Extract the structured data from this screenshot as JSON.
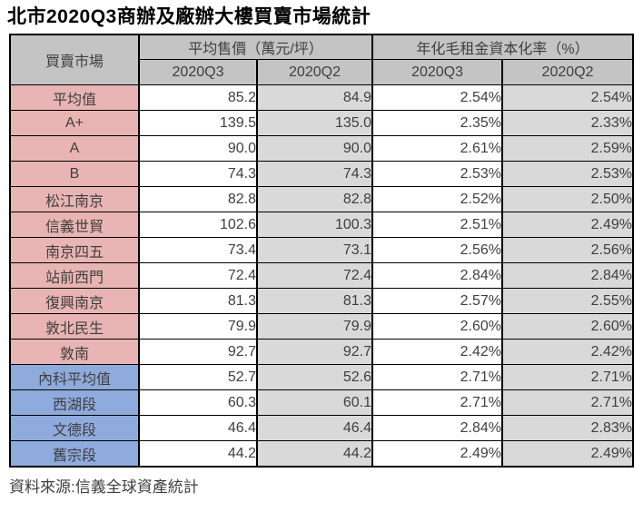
{
  "title": "北市2020Q3商辦及廠辦大樓買賣市場統計",
  "source_note": "資料來源:信義全球資產統計",
  "table": {
    "corner_header": "買賣市場",
    "group_headers": [
      "平均售價（萬元/坪）",
      "年化毛租金資本化率（%）"
    ],
    "sub_headers": [
      "2020Q3",
      "2020Q2",
      "2020Q3",
      "2020Q2"
    ],
    "column_names": [
      "price-2020q3",
      "price-2020q2",
      "caprate-2020q3",
      "caprate-2020q2"
    ],
    "rows": [
      {
        "label": "平均值",
        "section": "city",
        "values": [
          "85.2",
          "84.9",
          "2.54%",
          "2.54%"
        ]
      },
      {
        "label": "A+",
        "section": "city",
        "values": [
          "139.5",
          "135.0",
          "2.35%",
          "2.33%"
        ]
      },
      {
        "label": "A",
        "section": "city",
        "values": [
          "90.0",
          "90.0",
          "2.61%",
          "2.59%"
        ]
      },
      {
        "label": "B",
        "section": "city",
        "values": [
          "74.3",
          "74.3",
          "2.53%",
          "2.53%"
        ]
      },
      {
        "label": "松江南京",
        "section": "city",
        "values": [
          "82.8",
          "82.8",
          "2.52%",
          "2.50%"
        ]
      },
      {
        "label": "信義世貿",
        "section": "city",
        "values": [
          "102.6",
          "100.3",
          "2.51%",
          "2.49%"
        ]
      },
      {
        "label": "南京四五",
        "section": "city",
        "values": [
          "73.4",
          "73.1",
          "2.56%",
          "2.56%"
        ]
      },
      {
        "label": "站前西門",
        "section": "city",
        "values": [
          "72.4",
          "72.4",
          "2.84%",
          "2.84%"
        ]
      },
      {
        "label": "復興南京",
        "section": "city",
        "values": [
          "81.3",
          "81.3",
          "2.57%",
          "2.55%"
        ]
      },
      {
        "label": "敦北民生",
        "section": "city",
        "values": [
          "79.9",
          "79.9",
          "2.60%",
          "2.60%"
        ]
      },
      {
        "label": "敦南",
        "section": "city",
        "values": [
          "92.7",
          "92.7",
          "2.42%",
          "2.42%"
        ]
      },
      {
        "label": "內科平均值",
        "section": "neihu",
        "values": [
          "52.7",
          "52.6",
          "2.71%",
          "2.71%"
        ]
      },
      {
        "label": "西湖段",
        "section": "neihu",
        "values": [
          "60.3",
          "60.1",
          "2.71%",
          "2.71%"
        ]
      },
      {
        "label": "文德段",
        "section": "neihu",
        "values": [
          "46.4",
          "46.4",
          "2.84%",
          "2.83%"
        ]
      },
      {
        "label": "舊宗段",
        "section": "neihu",
        "values": [
          "44.2",
          "44.2",
          "2.49%",
          "2.49%"
        ]
      }
    ]
  },
  "colors": {
    "city_label_bg": "#E9B4B4",
    "neihu_label_bg": "#8FAADC",
    "header_bg": "#C4C4C4",
    "alt_column_bg": "#D9D9D9",
    "border": "#000000",
    "text": "#3F3F3F"
  }
}
